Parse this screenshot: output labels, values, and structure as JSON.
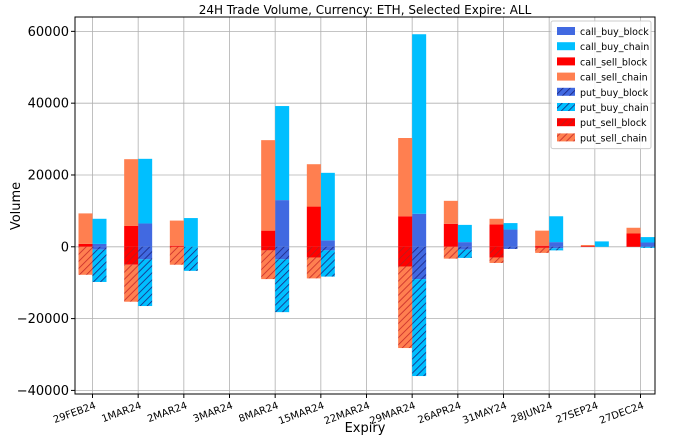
{
  "chart_data": {
    "type": "bar",
    "title": "24H Trade Volume, Currency: ETH, Selected Expire: ALL",
    "xlabel": "Expiry",
    "ylabel": "Volume",
    "ylim": [
      -41000,
      64000
    ],
    "yticks": [
      -40000,
      -20000,
      0,
      20000,
      40000,
      60000
    ],
    "ytick_labels": [
      "−40000",
      "−20000",
      "0",
      "20000",
      "40000",
      "60000"
    ],
    "grid": true,
    "legend_position": "top-right",
    "categories": [
      "29FEB24",
      "1MAR24",
      "2MAR24",
      "3MAR24",
      "8MAR24",
      "15MAR24",
      "22MAR24",
      "29MAR24",
      "26APR24",
      "31MAY24",
      "28JUN24",
      "27SEP24",
      "27DEC24"
    ],
    "series": [
      {
        "name": "call_buy_block",
        "color": "#4169e1",
        "side": "right",
        "direction": "up",
        "hatched": false,
        "values": [
          800,
          6500,
          0,
          0,
          13000,
          1800,
          0,
          9200,
          1300,
          4800,
          1300,
          0,
          1200
        ]
      },
      {
        "name": "call_buy_chain",
        "color": "#00bfff",
        "side": "right",
        "direction": "up",
        "hatched": false,
        "values": [
          7000,
          18000,
          8000,
          0,
          26200,
          18800,
          0,
          50000,
          4800,
          1800,
          7200,
          1500,
          1500
        ]
      },
      {
        "name": "call_sell_block",
        "color": "#ff0000",
        "side": "left",
        "direction": "up",
        "hatched": false,
        "values": [
          800,
          5800,
          300,
          0,
          4500,
          11200,
          0,
          8500,
          6400,
          6200,
          300,
          200,
          3700
        ]
      },
      {
        "name": "call_sell_chain",
        "color": "#ff7f50",
        "side": "left",
        "direction": "up",
        "hatched": false,
        "values": [
          8500,
          18600,
          7000,
          0,
          25200,
          11800,
          0,
          21800,
          6400,
          1600,
          4200,
          300,
          1600
        ]
      },
      {
        "name": "put_buy_block",
        "color": "#4169e1",
        "side": "right",
        "direction": "down",
        "hatched": true,
        "values": [
          800,
          3500,
          0,
          0,
          3500,
          1000,
          0,
          9000,
          800,
          600,
          400,
          0,
          0
        ]
      },
      {
        "name": "put_buy_chain",
        "color": "#00bfff",
        "side": "right",
        "direction": "down",
        "hatched": true,
        "values": [
          9000,
          13000,
          6700,
          0,
          14700,
          7300,
          0,
          27000,
          2300,
          0,
          600,
          0,
          300
        ]
      },
      {
        "name": "put_sell_block",
        "color": "#ff0000",
        "side": "left",
        "direction": "down",
        "hatched": true,
        "values": [
          0,
          5000,
          0,
          0,
          1000,
          3000,
          0,
          5500,
          0,
          3000,
          300,
          0,
          0
        ]
      },
      {
        "name": "put_sell_chain",
        "color": "#ff7f50",
        "side": "left",
        "direction": "down",
        "hatched": true,
        "values": [
          7800,
          10300,
          5000,
          0,
          8000,
          5800,
          0,
          22700,
          3300,
          1500,
          1400,
          0,
          0
        ]
      }
    ]
  }
}
